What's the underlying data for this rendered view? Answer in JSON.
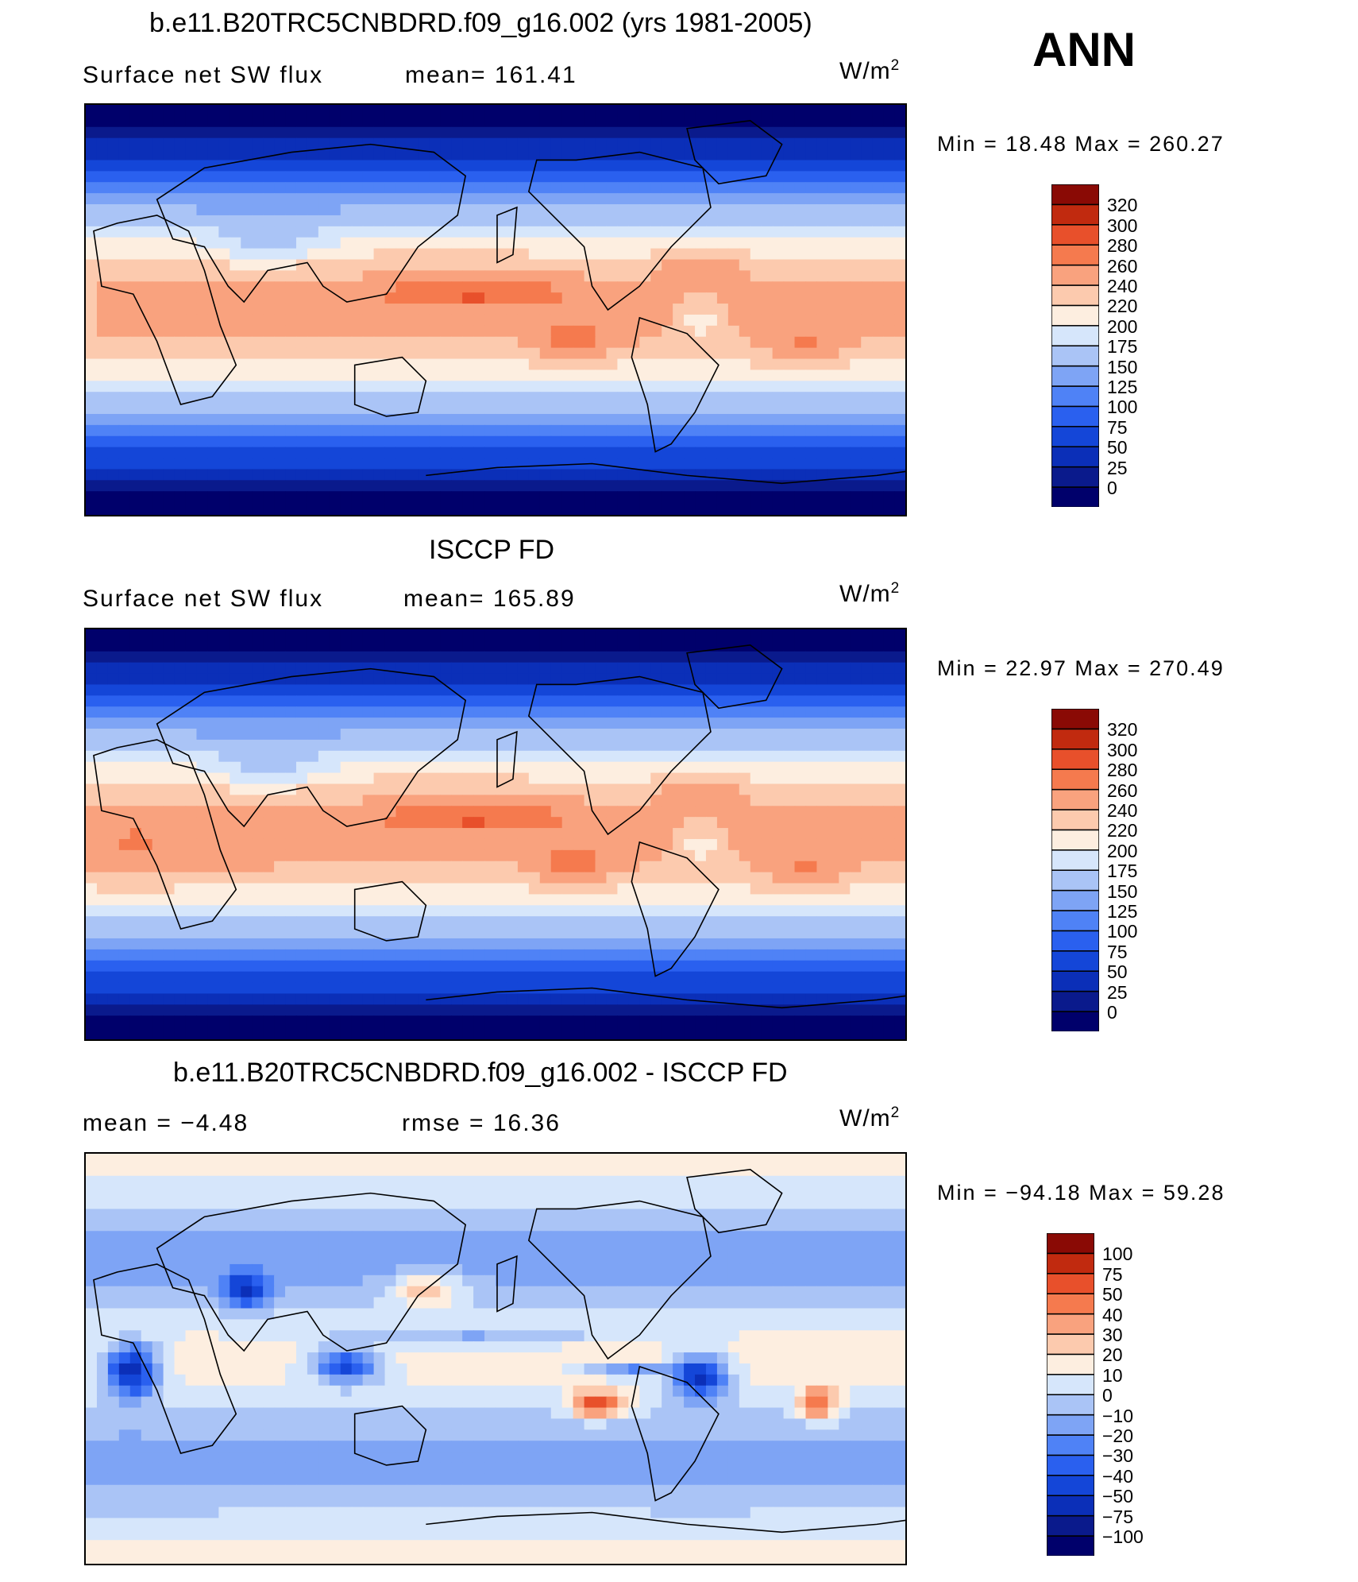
{
  "season": "ANN",
  "panels": [
    {
      "title": "b.e11.B20TRC5CNBDRD.f09_g16.002 (yrs 1981-2005)",
      "left_label": "Surface  net  SW  flux",
      "right_label": "mean=  161.41",
      "units_base": "W/m",
      "units_exp": "2",
      "minmax": "Min  =    18.48  Max  =  260.27"
    },
    {
      "title": "ISCCP FD",
      "left_label": "Surface  net  SW  flux",
      "right_label": "mean=  165.89",
      "units_base": "W/m",
      "units_exp": "2",
      "minmax": "Min  =    22.97  Max  =  270.49"
    },
    {
      "title": "b.e11.B20TRC5CNBDRD.f09_g16.002 - ISCCP FD",
      "left_label": "mean  =    −4.48",
      "right_label": "rmse  =    16.36",
      "units_base": "W/m",
      "units_exp": "2",
      "minmax": "Min  =  −94.18  Max  =    59.28"
    }
  ],
  "chart_data": [
    {
      "type": "heatmap",
      "title": "b.e11.B20TRC5CNBDRD.f09_g16.002 (yrs 1981-2005)",
      "variable": "Surface net SW flux",
      "units": "W/m2",
      "mean": 161.41,
      "min": 18.48,
      "max": 260.27,
      "colorbar_levels": [
        "0",
        "25",
        "50",
        "75",
        "100",
        "125",
        "150",
        "175",
        "200",
        "220",
        "240",
        "260",
        "280",
        "300",
        "320"
      ],
      "colorbar_colors": [
        "#00006b",
        "#0a1a8c",
        "#0b2fb8",
        "#1446d8",
        "#2a60ef",
        "#4f82f6",
        "#7ea4f5",
        "#aac4f6",
        "#d6e6fb",
        "#fdeee0",
        "#fccaae",
        "#f9a27e",
        "#f57a4e",
        "#e8502b",
        "#c12a0f",
        "#8a0a05"
      ]
    },
    {
      "type": "heatmap",
      "title": "ISCCP FD",
      "variable": "Surface net SW flux",
      "units": "W/m2",
      "mean": 165.89,
      "min": 22.97,
      "max": 270.49,
      "colorbar_levels": [
        "0",
        "25",
        "50",
        "75",
        "100",
        "125",
        "150",
        "175",
        "200",
        "220",
        "240",
        "260",
        "280",
        "300",
        "320"
      ],
      "colorbar_colors": [
        "#00006b",
        "#0a1a8c",
        "#0b2fb8",
        "#1446d8",
        "#2a60ef",
        "#4f82f6",
        "#7ea4f5",
        "#aac4f6",
        "#d6e6fb",
        "#fdeee0",
        "#fccaae",
        "#f9a27e",
        "#f57a4e",
        "#e8502b",
        "#c12a0f",
        "#8a0a05"
      ]
    },
    {
      "type": "heatmap",
      "title": "b.e11.B20TRC5CNBDRD.f09_g16.002 - ISCCP FD",
      "units": "W/m2",
      "mean": -4.48,
      "rmse": 16.36,
      "min": -94.18,
      "max": 59.28,
      "colorbar_levels": [
        "−100",
        "−75",
        "−50",
        "−40",
        "−30",
        "−20",
        "−10",
        "0",
        "10",
        "20",
        "30",
        "40",
        "50",
        "75",
        "100"
      ],
      "colorbar_colors": [
        "#00006b",
        "#0a1a8c",
        "#0b2fb8",
        "#1446d8",
        "#2a60ef",
        "#4f82f6",
        "#7ea4f5",
        "#aac4f6",
        "#d6e6fb",
        "#fdeee0",
        "#fccaae",
        "#f9a27e",
        "#f57a4e",
        "#e8502b",
        "#c12a0f",
        "#8a0a05"
      ]
    }
  ]
}
